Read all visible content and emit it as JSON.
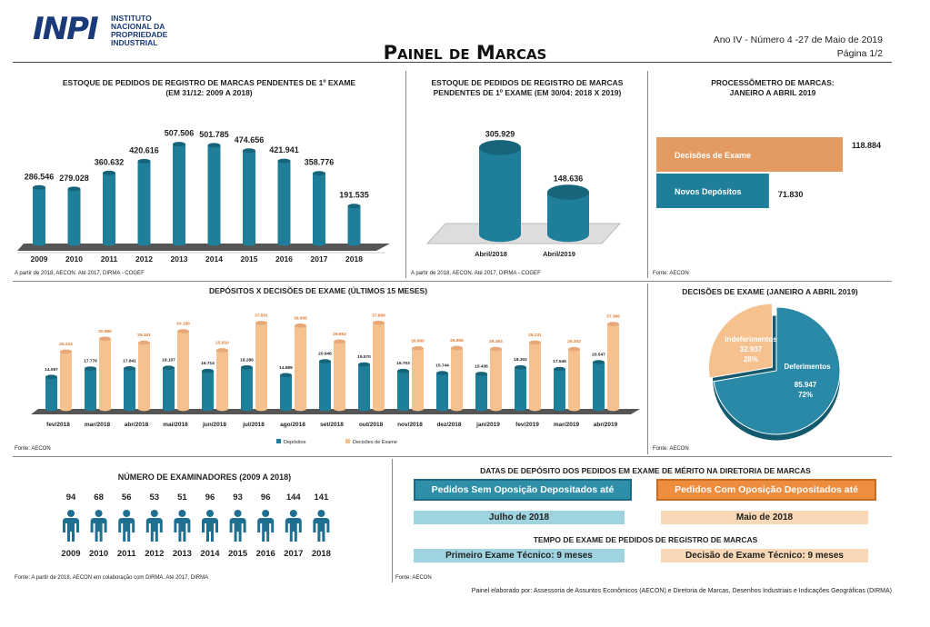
{
  "header": {
    "logo_letters": "INPI",
    "logo_line1": "INSTITUTO",
    "logo_line2": "NACIONAL DA",
    "logo_line3": "PROPRIEDADE",
    "logo_line4": "INDUSTRIAL",
    "title": "Painel de Marcas",
    "issue": "Ano IV - Número 4 -27 de Maio de 2019",
    "page": "Página 1/2"
  },
  "colors": {
    "teal": "#1f7f9a",
    "peach": "#f5c28f",
    "orange": "#ef8d3f",
    "light_teal": "#9fd3df",
    "light_peach": "#f8d8b6"
  },
  "panel1": {
    "title_line1": "ESTOQUE DE PEDIDOS DE REGISTRO DE MARCAS PENDENTES DE 1º EXAME",
    "title_line2": "(EM 31/12: 2009 A 2018)",
    "source": "A partir de 2018, AECON. Até 2017, DIRMA - COGEF"
  },
  "panel2": {
    "title_line1": "ESTOQUE DE PEDIDOS DE REGISTRO DE MARCAS",
    "title_line2": "PENDENTES DE 1º EXAME (EM 30/04: 2018 X 2019)",
    "source": "A partir de 2018, AECON. Até 2017, DIRMA - COGEF"
  },
  "panel3": {
    "title_line1": "PROCESSÔMETRO DE MARCAS:",
    "title_line2": "JANEIRO A ABRIL 2019",
    "source": "Fonte: AECON"
  },
  "panel4": {
    "title": "DEPÓSITOS X DECISÕES DE EXAME (ÚLTIMOS 15 MESES)",
    "source": "Fonte: AECON"
  },
  "panel5": {
    "title": "DECISÕES DE EXAME (JANEIRO A ABRIL 2019)",
    "source": "Fonte: AECON"
  },
  "panel6": {
    "title": "NÚMERO DE EXAMINADORES (2009 A 2018)",
    "source": "Fonte: A partir de 2018, AECON em colaboração com DIRMA. Até 2017, DIRMA"
  },
  "panel7": {
    "title": "DATAS DE DEPÓSITO DOS PEDIDOS EM EXAME DE MÉRITO NA DIRETORIA DE MARCAS",
    "btn_left": "Pedidos Sem Oposição Depositados até",
    "btn_right": "Pedidos Com Oposição Depositados até",
    "date_left": "Julho de 2018",
    "date_right": "Maio de 2018",
    "subtitle": "TEMPO DE EXAME DE PEDIDOS DE REGISTRO  DE MARCAS",
    "time_left": "Primeiro Exame Técnico: 9 meses",
    "time_right": "Decisão de Exame Técnico: 9 meses",
    "source": "Fonte: AECON"
  },
  "footer": "Painel elaborado por: Assessoria de Assuntos Econômicos (AECON) e Diretoria de Marcas, Desenhos Industriais e Indicações Geográficas (DIRMA)",
  "chart_data": [
    {
      "type": "bar",
      "id": "stock_yearly",
      "categories": [
        "2009",
        "2010",
        "2011",
        "2012",
        "2013",
        "2014",
        "2015",
        "2016",
        "2017",
        "2018"
      ],
      "values": [
        286546,
        279028,
        360632,
        420616,
        507506,
        501785,
        474656,
        421941,
        358776,
        191535
      ],
      "labels": [
        "286.546",
        "279.028",
        "360.632",
        "420.616",
        "507.506",
        "501.785",
        "474.656",
        "421.941",
        "358.776",
        "191.535"
      ],
      "ylim": [
        0,
        520000
      ],
      "grid": false
    },
    {
      "type": "bar",
      "id": "stock_april",
      "categories": [
        "Abril/2018",
        "Abril/2019"
      ],
      "values": [
        305929,
        148636
      ],
      "labels": [
        "305.929",
        "148.636"
      ],
      "ylim": [
        0,
        320000
      ],
      "grid": false
    },
    {
      "type": "bar",
      "id": "processometro",
      "orientation": "horizontal",
      "categories": [
        "Decisões de Exame",
        "Novos Depósitos"
      ],
      "values": [
        118884,
        71830
      ],
      "labels": [
        "118.884",
        "71.830"
      ]
    },
    {
      "type": "bar",
      "id": "depositos_decisoes",
      "categories": [
        "fev/2018",
        "mar/2018",
        "abr/2018",
        "mai/2018",
        "jun/2018",
        "jul/2018",
        "ago/2018",
        "set/2018",
        "out/2018",
        "nov/2018",
        "dez/2018",
        "jan/2019",
        "fev/2019",
        "mar/2019",
        "abr/2019"
      ],
      "series": [
        {
          "name": "Depósitos",
          "values": [
            14097,
            17776,
            17841,
            18107,
            16714,
            18286,
            14889,
            20948,
            19570,
            16703,
            15744,
            15436,
            18302,
            17545,
            20547
          ],
          "labels": [
            "14.097",
            "17.776",
            "17.841",
            "18.107",
            "16.714",
            "18.286",
            "14.889",
            "20.948",
            "19.570",
            "16.703",
            "15.744",
            "15.436",
            "18.302",
            "17.545",
            "20.547"
          ]
        },
        {
          "name": "Decisões de Exame",
          "values": [
            25234,
            30886,
            29161,
            34189,
            25810,
            37831,
            36656,
            29663,
            37899,
            26660,
            26806,
            26363,
            29231,
            26302,
            37366
          ],
          "labels": [
            "25.234",
            "30.886",
            "29.161",
            "34.189",
            "25.810",
            "37.831",
            "36.656",
            "29.663",
            "37.899",
            "26.660",
            "26.806",
            "26.363",
            "29.231",
            "26.302",
            "37.366"
          ]
        }
      ],
      "ylim": [
        0,
        40000
      ],
      "legend": "bottom"
    },
    {
      "type": "pie",
      "id": "decisoes_pie",
      "categories": [
        "Deferimentos",
        "Indeferimentos"
      ],
      "values": [
        85947,
        32937
      ],
      "labels": [
        "85.947",
        "32.937"
      ],
      "percents": [
        "72%",
        "28%"
      ]
    },
    {
      "type": "bar",
      "id": "examinadores",
      "categories": [
        "2009",
        "2010",
        "2011",
        "2012",
        "2013",
        "2014",
        "2015",
        "2016",
        "2017",
        "2018"
      ],
      "values": [
        94,
        68,
        56,
        53,
        51,
        96,
        93,
        96,
        144,
        141
      ]
    }
  ]
}
